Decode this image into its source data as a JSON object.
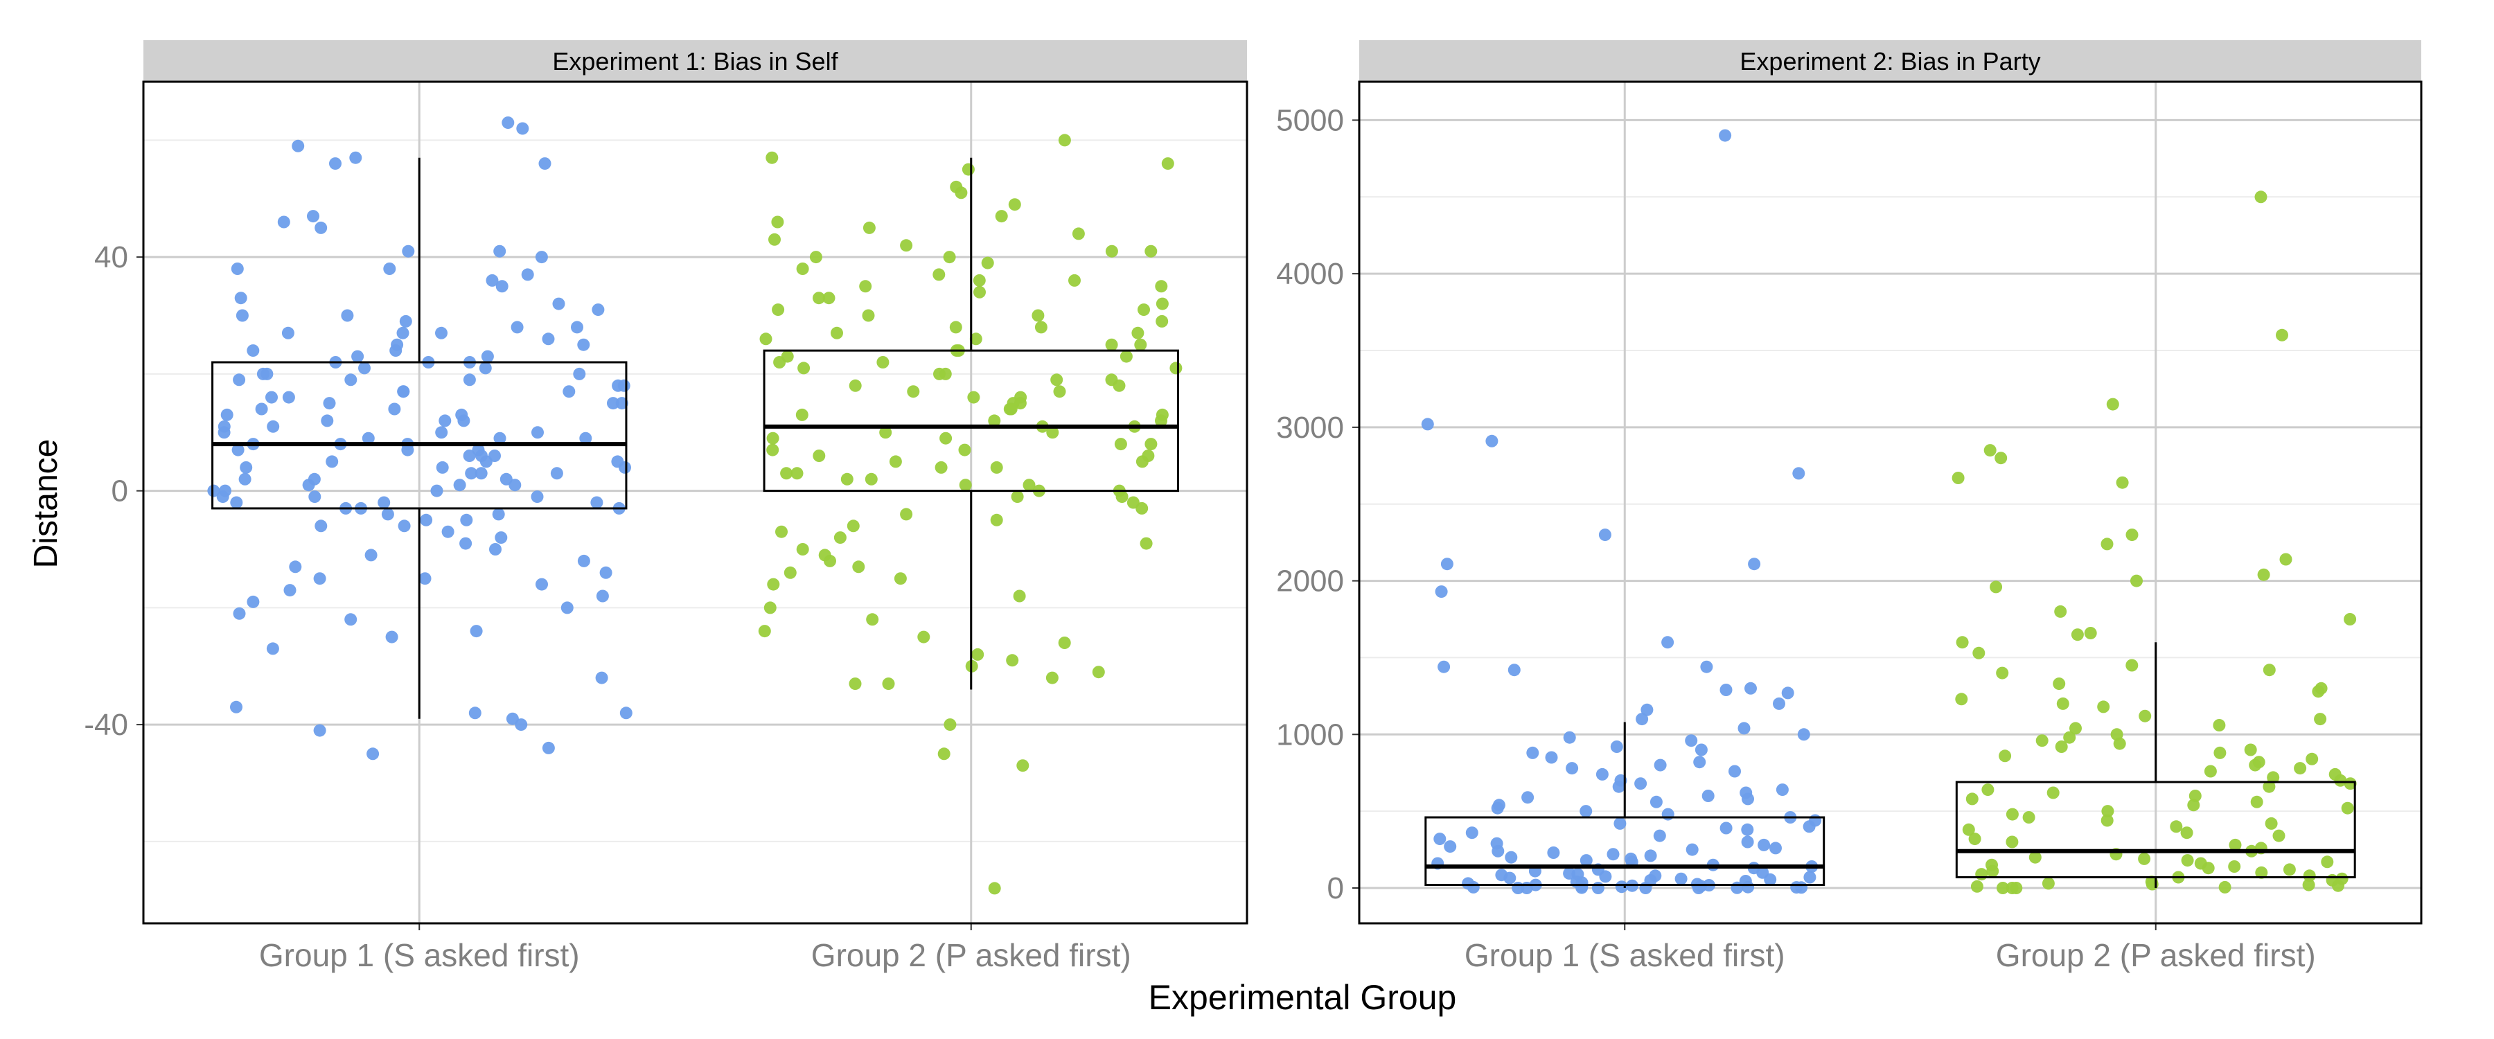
{
  "figure": {
    "ylabel": "Distance",
    "xlabel": "Experimental Group"
  },
  "colors": {
    "group1": "#6d9eeb",
    "group2": "#9acd3c",
    "strip_bg": "#d0d0d0",
    "grid_major": "#cccccc",
    "grid_minor": "#ececec",
    "axis_text": "#808080"
  },
  "chart_data": [
    {
      "type": "box-jitter",
      "title": "Experiment 1: Bias in Self",
      "categories": [
        "Group 1 (S asked first)",
        "Group 2 (P asked first)"
      ],
      "ylim": [
        -74,
        70
      ],
      "yticks": [
        -40,
        0,
        40
      ],
      "yticklabels": [
        "-40",
        "0",
        "40"
      ],
      "grid": true,
      "series": [
        {
          "category": "Group 1 (S asked first)",
          "box": {
            "whisker_low": -39,
            "q1": -3,
            "median": 8,
            "q3": 22,
            "whisker_high": 57
          },
          "points": [
            63,
            59,
            62,
            57,
            56,
            56,
            47,
            46,
            45,
            41,
            41,
            40,
            38,
            38,
            37,
            36,
            35,
            33,
            32,
            31,
            30,
            30,
            29,
            28,
            28,
            27,
            27,
            27,
            26,
            25,
            25,
            24,
            24,
            23,
            23,
            22,
            22,
            22,
            21,
            21,
            20,
            20,
            20,
            19,
            19,
            19,
            18,
            18,
            17,
            17,
            17,
            16,
            16,
            15,
            15,
            15,
            14,
            14,
            13,
            13,
            12,
            12,
            12,
            11,
            11,
            10,
            10,
            10,
            9,
            9,
            9,
            8,
            8,
            8,
            7,
            7,
            7,
            6,
            6,
            6,
            5,
            5,
            5,
            4,
            4,
            4,
            3,
            3,
            3,
            2,
            2,
            2,
            1,
            1,
            1,
            0,
            0,
            0,
            -1,
            -1,
            -1,
            -2,
            -2,
            -2,
            -3,
            -3,
            -3,
            -4,
            -4,
            -5,
            -5,
            -6,
            -6,
            -7,
            -8,
            -9,
            -10,
            -11,
            -12,
            -13,
            -14,
            -15,
            -15,
            -16,
            -17,
            -18,
            -19,
            -20,
            -21,
            -22,
            -24,
            -25,
            -27,
            -32,
            -37,
            -38,
            -38,
            -39,
            -40,
            -41,
            -44,
            -45
          ]
        },
        {
          "category": "Group 2 (P asked first)",
          "box": {
            "whisker_low": -34,
            "q1": 0,
            "median": 11,
            "q3": 24,
            "whisker_high": 57
          },
          "points": [
            60,
            57,
            56,
            55,
            52,
            51,
            49,
            47,
            46,
            45,
            44,
            43,
            42,
            41,
            41,
            40,
            40,
            39,
            38,
            37,
            36,
            36,
            35,
            35,
            34,
            33,
            33,
            32,
            31,
            31,
            30,
            30,
            29,
            28,
            28,
            27,
            27,
            26,
            26,
            25,
            25,
            24,
            24,
            23,
            23,
            22,
            22,
            21,
            21,
            20,
            20,
            19,
            19,
            18,
            18,
            17,
            17,
            16,
            16,
            15,
            15,
            14,
            14,
            13,
            13,
            12,
            12,
            11,
            11,
            10,
            10,
            9,
            9,
            8,
            8,
            7,
            7,
            6,
            6,
            5,
            5,
            4,
            4,
            3,
            3,
            2,
            2,
            1,
            1,
            0,
            0,
            -1,
            -1,
            -2,
            -3,
            -4,
            -5,
            -6,
            -7,
            -8,
            -9,
            -10,
            -11,
            -12,
            -13,
            -14,
            -15,
            -16,
            -18,
            -20,
            -22,
            -24,
            -25,
            -26,
            -28,
            -29,
            -30,
            -31,
            -32,
            -33,
            -33,
            -40,
            -45,
            -47,
            -68
          ]
        }
      ]
    },
    {
      "type": "box-jitter",
      "title": "Experiment 2: Bias in Party",
      "categories": [
        "Group 1 (S asked first)",
        "Group 2 (P asked first)"
      ],
      "ylim": [
        -230,
        5250
      ],
      "yticks": [
        0,
        1000,
        2000,
        3000,
        4000,
        5000
      ],
      "yticklabels": [
        "0",
        "1000",
        "2000",
        "3000",
        "4000",
        "5000"
      ],
      "grid": true,
      "series": [
        {
          "category": "Group 1 (S asked first)",
          "box": {
            "whisker_low": 0,
            "q1": 20,
            "median": 140,
            "q3": 460,
            "whisker_high": 1080
          },
          "points": [
            4900,
            3020,
            2910,
            2700,
            2300,
            2110,
            2110,
            1930,
            1600,
            1440,
            1440,
            1420,
            1300,
            1290,
            1270,
            1200,
            1160,
            1100,
            1040,
            1000,
            980,
            960,
            920,
            900,
            880,
            850,
            820,
            800,
            780,
            760,
            740,
            700,
            680,
            660,
            640,
            620,
            600,
            590,
            580,
            560,
            540,
            520,
            500,
            480,
            460,
            440,
            420,
            400,
            390,
            380,
            360,
            340,
            320,
            300,
            290,
            280,
            270,
            260,
            250,
            240,
            230,
            220,
            210,
            200,
            190,
            180,
            170,
            160,
            150,
            140,
            130,
            120,
            110,
            100,
            95,
            90,
            85,
            80,
            75,
            70,
            65,
            60,
            55,
            50,
            45,
            40,
            35,
            30,
            25,
            20,
            18,
            15,
            12,
            10,
            8,
            6,
            5,
            4,
            3,
            2,
            1,
            0,
            0,
            0,
            0,
            0
          ]
        },
        {
          "category": "Group 2 (P asked first)",
          "box": {
            "whisker_low": 0,
            "q1": 70,
            "median": 240,
            "q3": 690,
            "whisker_high": 1600
          },
          "points": [
            4500,
            3600,
            3150,
            2850,
            2800,
            2670,
            2640,
            2300,
            2240,
            2140,
            2040,
            2000,
            1960,
            1800,
            1750,
            1660,
            1650,
            1600,
            1530,
            1450,
            1420,
            1400,
            1330,
            1300,
            1280,
            1230,
            1200,
            1180,
            1120,
            1100,
            1060,
            1040,
            1000,
            980,
            960,
            940,
            920,
            900,
            880,
            860,
            840,
            820,
            800,
            780,
            760,
            740,
            720,
            700,
            680,
            660,
            640,
            620,
            600,
            580,
            560,
            540,
            520,
            500,
            480,
            460,
            440,
            420,
            400,
            380,
            360,
            340,
            320,
            300,
            280,
            260,
            240,
            220,
            200,
            190,
            180,
            170,
            160,
            150,
            140,
            130,
            120,
            110,
            100,
            90,
            80,
            70,
            60,
            50,
            40,
            30,
            25,
            20,
            15,
            10,
            5,
            0,
            0,
            0
          ]
        }
      ]
    }
  ]
}
